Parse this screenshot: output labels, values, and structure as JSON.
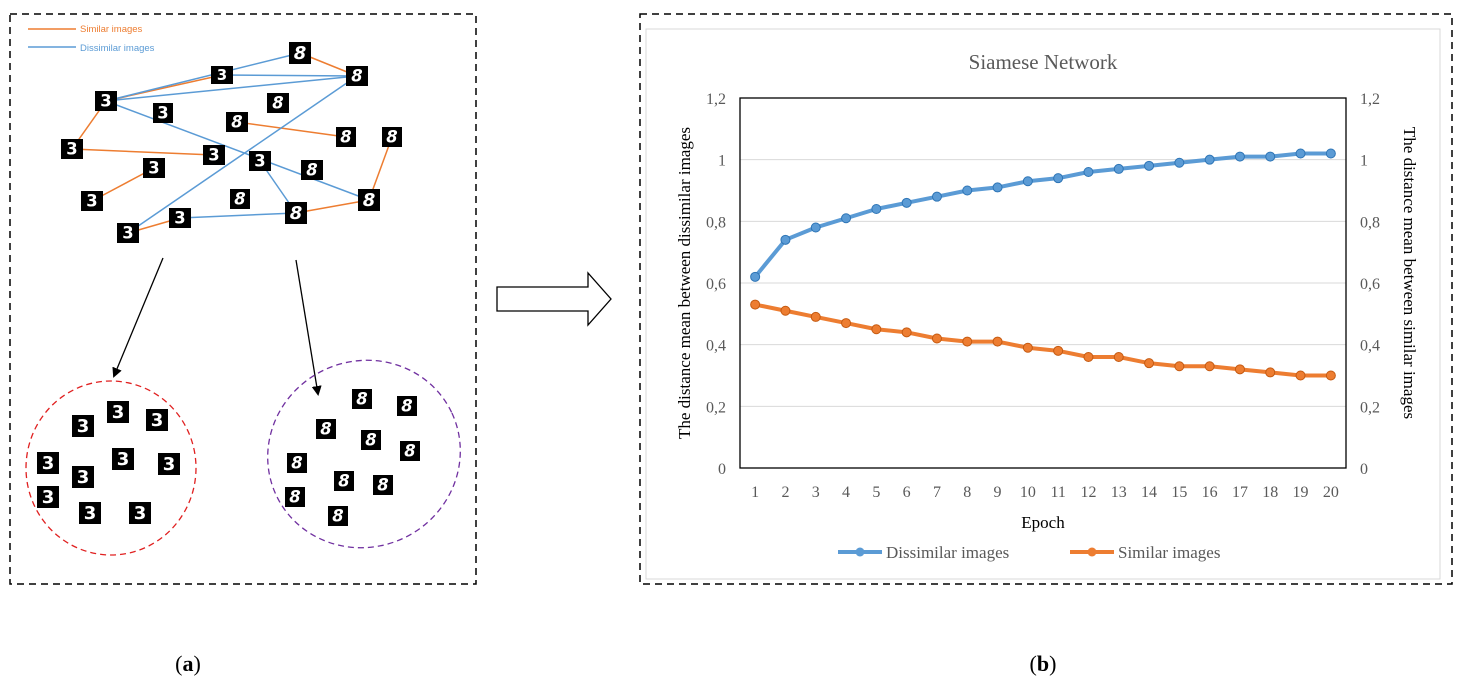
{
  "panel_a": {
    "legend": [
      {
        "label": "Similar images",
        "color": "#ED7D31"
      },
      {
        "label": "Dissimilar images",
        "color": "#5B9BD5"
      }
    ],
    "caption_letter": "a",
    "cluster_colors": {
      "threes": "#E02020",
      "eights": "#7030A0"
    }
  },
  "panel_b": {
    "caption_letter": "b"
  },
  "chart_data": {
    "type": "line",
    "title": "Siamese Network",
    "xlabel": "Epoch",
    "ylabel_left": "The distance mean between dissimilar images",
    "ylabel_right": "The distance mean between similar images",
    "categories": [
      "1",
      "2",
      "3",
      "4",
      "5",
      "6",
      "7",
      "8",
      "9",
      "10",
      "11",
      "12",
      "13",
      "14",
      "15",
      "16",
      "17",
      "18",
      "19",
      "20"
    ],
    "ylim": [
      0,
      1.2
    ],
    "yticks": [
      "0",
      "0,2",
      "0,4",
      "0,6",
      "0,8",
      "1",
      "1,2"
    ],
    "grid": true,
    "legend_position": "bottom",
    "series": [
      {
        "name": "Dissimilar images",
        "color": "#5B9BD5",
        "values": [
          0.62,
          0.74,
          0.78,
          0.81,
          0.84,
          0.86,
          0.88,
          0.9,
          0.91,
          0.93,
          0.94,
          0.96,
          0.97,
          0.98,
          0.99,
          1.0,
          1.01,
          1.01,
          1.02,
          1.02
        ]
      },
      {
        "name": "Similar images",
        "color": "#ED7D31",
        "values": [
          0.53,
          0.51,
          0.49,
          0.47,
          0.45,
          0.44,
          0.42,
          0.41,
          0.41,
          0.39,
          0.38,
          0.36,
          0.36,
          0.34,
          0.33,
          0.33,
          0.32,
          0.31,
          0.3,
          0.3
        ]
      }
    ]
  }
}
